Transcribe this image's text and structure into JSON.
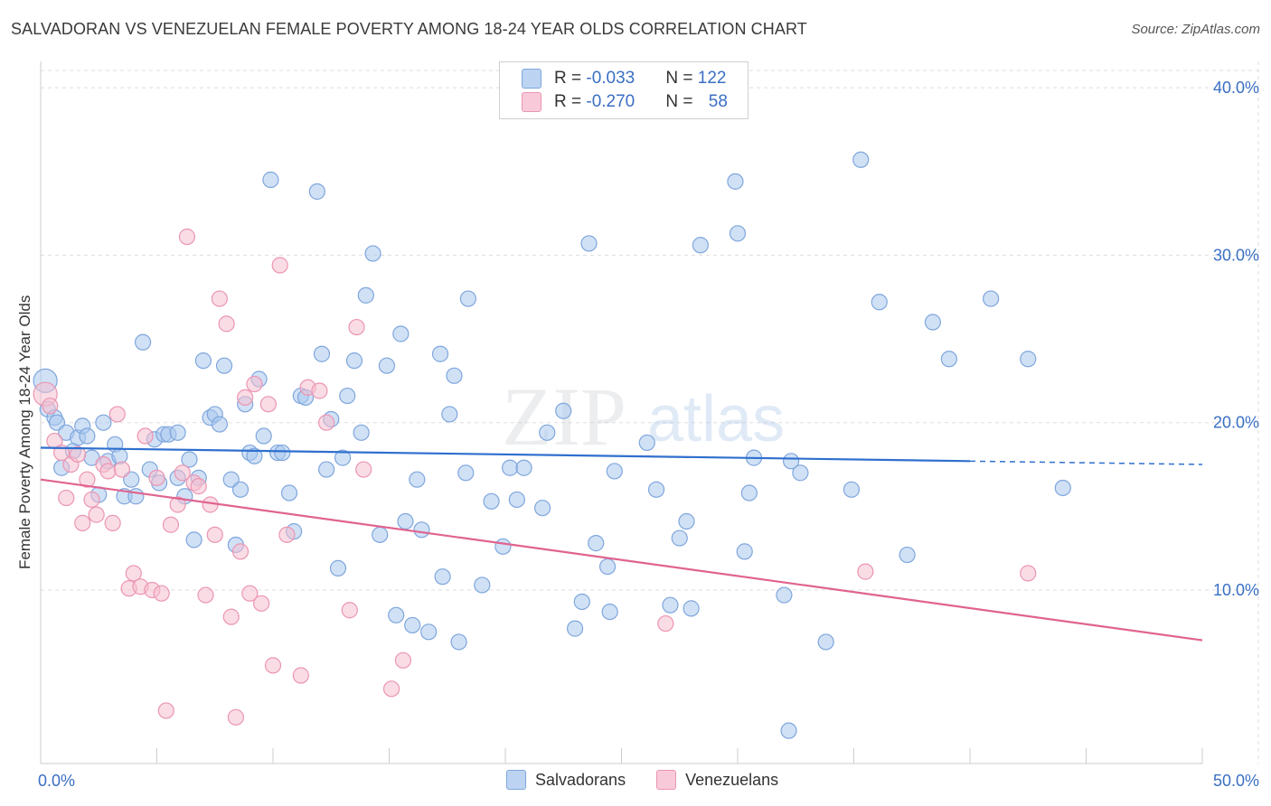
{
  "title": "SALVADORAN VS VENEZUELAN FEMALE POVERTY AMONG 18-24 YEAR OLDS CORRELATION CHART",
  "source": "Source: ZipAtlas.com",
  "watermark": {
    "zip": "ZIP",
    "atlas": "atlas"
  },
  "legend": {
    "row1": {
      "r_label": "R = ",
      "r_value": "-0.033",
      "n_label": "N = ",
      "n_value": "122"
    },
    "row2": {
      "r_label": "R = ",
      "r_value": "-0.270",
      "n_label": "N = ",
      "n_value": "58"
    }
  },
  "colors": {
    "blue_fill": "#aac8ee",
    "blue_stroke": "#7fa6dc",
    "blue_line": "#2f6fce",
    "pink_fill": "#f6bfd0",
    "pink_stroke": "#eb95b2",
    "pink_line": "#e0638f",
    "axis_text": "#3a6fc4",
    "grid": "#dddddd"
  },
  "chart_data": {
    "type": "scatter",
    "title": "SALVADORAN VS VENEZUELAN FEMALE POVERTY AMONG 18-24 YEAR OLDS CORRELATION CHART",
    "xlabel": "",
    "ylabel": "Female Poverty Among 18-24 Year Olds",
    "xlim": [
      0,
      50
    ],
    "ylim": [
      0,
      42
    ],
    "x_tick_labels": [
      {
        "x": 0,
        "label": "0.0%"
      },
      {
        "x": 50,
        "label": "50.0%"
      }
    ],
    "y_tick_labels": [
      {
        "y": 10,
        "label": "10.0%"
      },
      {
        "y": 20,
        "label": "20.0%"
      },
      {
        "y": 30,
        "label": "30.0%"
      },
      {
        "y": 40,
        "label": "40.0%"
      }
    ],
    "grid": true,
    "legend_position": "top-center",
    "series": [
      {
        "name": "Salvadorans",
        "trend": {
          "x": [
            0,
            40
          ],
          "y": [
            18.5,
            17.7
          ],
          "dashed_to": [
            50,
            17.5
          ]
        },
        "points": [
          [
            0.2,
            22.5
          ],
          [
            0.3,
            20.8
          ],
          [
            0.6,
            20.3
          ],
          [
            0.7,
            20.0
          ],
          [
            0.9,
            17.3
          ],
          [
            1.1,
            19.4
          ],
          [
            1.4,
            18.3
          ],
          [
            1.6,
            19.1
          ],
          [
            1.8,
            19.8
          ],
          [
            2.0,
            19.2
          ],
          [
            2.2,
            17.9
          ],
          [
            2.5,
            15.7
          ],
          [
            2.7,
            20.0
          ],
          [
            2.9,
            17.7
          ],
          [
            3.2,
            18.7
          ],
          [
            3.4,
            18.0
          ],
          [
            3.6,
            15.6
          ],
          [
            3.9,
            16.6
          ],
          [
            4.1,
            15.6
          ],
          [
            4.4,
            24.8
          ],
          [
            4.7,
            17.2
          ],
          [
            4.9,
            19.0
          ],
          [
            5.1,
            16.4
          ],
          [
            5.3,
            19.3
          ],
          [
            5.5,
            19.3
          ],
          [
            5.9,
            19.4
          ],
          [
            5.9,
            16.7
          ],
          [
            6.2,
            15.6
          ],
          [
            6.4,
            17.8
          ],
          [
            6.6,
            13.0
          ],
          [
            6.8,
            16.7
          ],
          [
            7.0,
            23.7
          ],
          [
            7.3,
            20.3
          ],
          [
            7.5,
            20.5
          ],
          [
            7.7,
            19.9
          ],
          [
            7.9,
            23.4
          ],
          [
            8.2,
            16.6
          ],
          [
            8.4,
            12.7
          ],
          [
            8.6,
            16.0
          ],
          [
            8.8,
            21.1
          ],
          [
            9.0,
            18.2
          ],
          [
            9.2,
            18.0
          ],
          [
            9.4,
            22.6
          ],
          [
            9.6,
            19.2
          ],
          [
            9.9,
            34.5
          ],
          [
            10.2,
            18.2
          ],
          [
            10.4,
            18.2
          ],
          [
            10.7,
            15.8
          ],
          [
            10.9,
            13.5
          ],
          [
            11.2,
            21.6
          ],
          [
            11.4,
            21.5
          ],
          [
            11.9,
            33.8
          ],
          [
            12.1,
            24.1
          ],
          [
            12.3,
            17.2
          ],
          [
            12.5,
            20.2
          ],
          [
            12.8,
            11.3
          ],
          [
            13.0,
            17.9
          ],
          [
            13.2,
            21.6
          ],
          [
            13.5,
            23.7
          ],
          [
            13.8,
            19.4
          ],
          [
            14.0,
            27.6
          ],
          [
            14.3,
            30.1
          ],
          [
            14.6,
            13.3
          ],
          [
            14.9,
            23.4
          ],
          [
            15.3,
            8.5
          ],
          [
            15.5,
            25.3
          ],
          [
            15.7,
            14.1
          ],
          [
            16.0,
            7.9
          ],
          [
            16.2,
            16.6
          ],
          [
            16.4,
            13.6
          ],
          [
            16.7,
            7.5
          ],
          [
            17.2,
            24.1
          ],
          [
            17.3,
            10.8
          ],
          [
            17.6,
            20.5
          ],
          [
            17.8,
            22.8
          ],
          [
            18.0,
            6.9
          ],
          [
            18.3,
            17.0
          ],
          [
            18.4,
            27.4
          ],
          [
            19.0,
            10.3
          ],
          [
            19.4,
            15.3
          ],
          [
            19.9,
            12.6
          ],
          [
            20.2,
            17.3
          ],
          [
            20.5,
            15.4
          ],
          [
            20.8,
            17.3
          ],
          [
            21.6,
            14.9
          ],
          [
            21.8,
            19.4
          ],
          [
            22.5,
            20.7
          ],
          [
            23.0,
            7.7
          ],
          [
            23.3,
            9.3
          ],
          [
            23.6,
            30.7
          ],
          [
            23.9,
            12.8
          ],
          [
            24.4,
            11.4
          ],
          [
            24.5,
            8.7
          ],
          [
            24.7,
            17.1
          ],
          [
            26.1,
            18.8
          ],
          [
            26.5,
            16.0
          ],
          [
            27.1,
            9.1
          ],
          [
            27.5,
            13.1
          ],
          [
            27.8,
            14.1
          ],
          [
            28.0,
            8.9
          ],
          [
            28.4,
            30.6
          ],
          [
            29.9,
            34.4
          ],
          [
            30.0,
            31.3
          ],
          [
            30.3,
            12.3
          ],
          [
            30.5,
            15.8
          ],
          [
            30.7,
            17.9
          ],
          [
            32.0,
            9.7
          ],
          [
            32.2,
            1.6
          ],
          [
            32.3,
            17.7
          ],
          [
            32.7,
            17.0
          ],
          [
            33.8,
            6.9
          ],
          [
            34.9,
            16.0
          ],
          [
            35.3,
            35.7
          ],
          [
            36.1,
            27.2
          ],
          [
            37.3,
            12.1
          ],
          [
            38.4,
            26.0
          ],
          [
            39.1,
            23.8
          ],
          [
            40.9,
            27.4
          ],
          [
            42.5,
            23.8
          ],
          [
            44.0,
            16.1
          ]
        ]
      },
      {
        "name": "Venezuelans",
        "trend": {
          "x": [
            0,
            50
          ],
          "y": [
            16.6,
            7.0
          ]
        },
        "points": [
          [
            0.2,
            21.7
          ],
          [
            0.4,
            21.0
          ],
          [
            0.6,
            18.9
          ],
          [
            0.9,
            18.2
          ],
          [
            1.1,
            15.5
          ],
          [
            1.3,
            17.5
          ],
          [
            1.6,
            18.1
          ],
          [
            1.8,
            14.0
          ],
          [
            2.0,
            16.6
          ],
          [
            2.2,
            15.4
          ],
          [
            2.4,
            14.5
          ],
          [
            2.7,
            17.5
          ],
          [
            2.9,
            17.1
          ],
          [
            3.1,
            14.0
          ],
          [
            3.3,
            20.5
          ],
          [
            3.5,
            17.2
          ],
          [
            3.8,
            10.1
          ],
          [
            4.0,
            11.0
          ],
          [
            4.3,
            10.2
          ],
          [
            4.5,
            19.2
          ],
          [
            4.8,
            10.0
          ],
          [
            5.0,
            16.7
          ],
          [
            5.2,
            9.8
          ],
          [
            5.4,
            2.8
          ],
          [
            5.6,
            13.9
          ],
          [
            5.9,
            15.1
          ],
          [
            6.1,
            17.0
          ],
          [
            6.3,
            31.1
          ],
          [
            6.6,
            16.4
          ],
          [
            6.8,
            16.2
          ],
          [
            7.1,
            9.7
          ],
          [
            7.3,
            15.1
          ],
          [
            7.5,
            13.3
          ],
          [
            7.7,
            27.4
          ],
          [
            8.0,
            25.9
          ],
          [
            8.2,
            8.4
          ],
          [
            8.4,
            2.4
          ],
          [
            8.6,
            12.3
          ],
          [
            8.8,
            21.5
          ],
          [
            9.0,
            9.8
          ],
          [
            9.2,
            22.3
          ],
          [
            9.5,
            9.2
          ],
          [
            9.8,
            21.1
          ],
          [
            10.0,
            5.5
          ],
          [
            10.3,
            29.4
          ],
          [
            10.6,
            13.3
          ],
          [
            11.2,
            4.9
          ],
          [
            11.5,
            22.1
          ],
          [
            12.0,
            21.9
          ],
          [
            12.3,
            20.0
          ],
          [
            13.3,
            8.8
          ],
          [
            13.6,
            25.7
          ],
          [
            13.9,
            17.2
          ],
          [
            15.1,
            4.1
          ],
          [
            15.6,
            5.8
          ],
          [
            26.9,
            8.0
          ],
          [
            35.5,
            11.1
          ],
          [
            42.5,
            11.0
          ]
        ]
      }
    ]
  },
  "bottom_legend": {
    "s1": "Salvadorans",
    "s2": "Venezuelans"
  }
}
